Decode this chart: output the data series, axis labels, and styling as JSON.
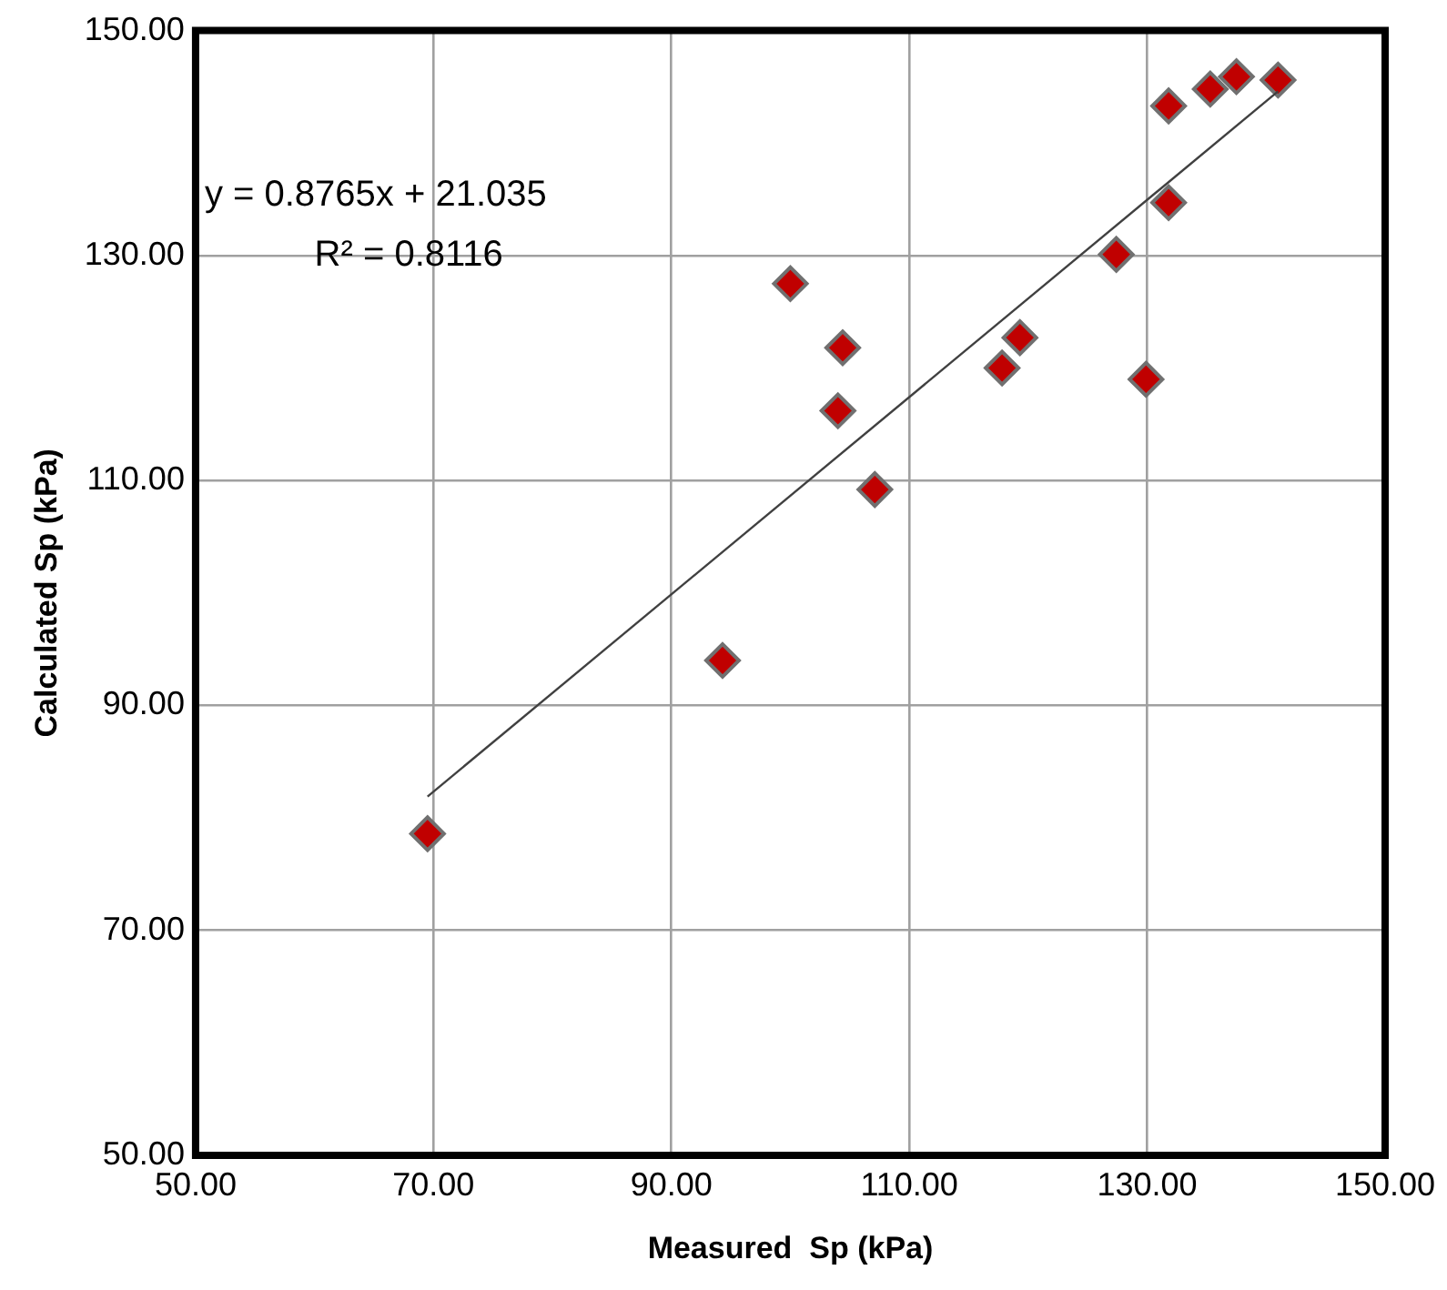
{
  "chart_data": {
    "type": "scatter",
    "xlabel": "Measured  Sp (kPa)",
    "ylabel": "Calculated Sp (kPa)",
    "annotations": [
      "y = 0.8765x + 21.035",
      "R² = 0.8116"
    ],
    "series": [
      {
        "color": "#c00000",
        "marker": "diamond",
        "x": [
          69.5,
          94.3,
          100.0,
          104.4,
          104.0,
          107.1,
          117.8,
          119.3,
          127.4,
          129.9,
          131.8,
          131.8,
          135.3,
          137.5,
          141.0
        ],
        "values": [
          78.6,
          94.0,
          127.5,
          121.8,
          116.2,
          109.2,
          120.0,
          122.7,
          130.1,
          119.0,
          134.7,
          143.3,
          144.8,
          145.9,
          145.6
        ]
      },
      {
        "type": "line",
        "color": "#404040",
        "marker": "none",
        "x": [
          69.5,
          141.0
        ],
        "values": [
          81.9,
          144.6
        ]
      }
    ],
    "xlim": [
      50,
      150
    ],
    "ylim": [
      50,
      150
    ],
    "xticks": [
      {
        "value": 50,
        "label": "50.00"
      },
      {
        "value": 70,
        "label": "70.00"
      },
      {
        "value": 90,
        "label": "90.00"
      },
      {
        "value": 110,
        "label": "110.00"
      },
      {
        "value": 130,
        "label": "130.00"
      },
      {
        "value": 150,
        "label": "150.00"
      }
    ],
    "yticks": [
      {
        "value": 50,
        "label": "50.00"
      },
      {
        "value": 70,
        "label": "70.00"
      },
      {
        "value": 90,
        "label": "90.00"
      },
      {
        "value": 110,
        "label": "110.00"
      },
      {
        "value": 130,
        "label": "130.00"
      },
      {
        "value": 150,
        "label": "150.00"
      }
    ],
    "grid": true,
    "legend": false
  }
}
